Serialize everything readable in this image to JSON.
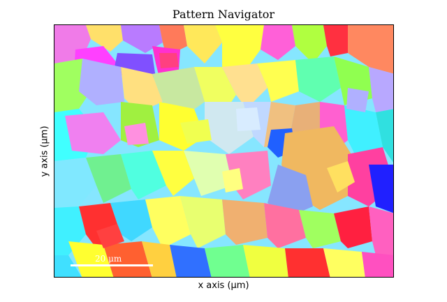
{
  "window": {
    "title": "Pattern Navigator"
  },
  "axes": {
    "xlabel": "x axis (μm)",
    "ylabel": "y axis (μm)"
  },
  "scalebar": {
    "label": "20 μm"
  },
  "map": {
    "background_color": "#7fe0ff"
  }
}
